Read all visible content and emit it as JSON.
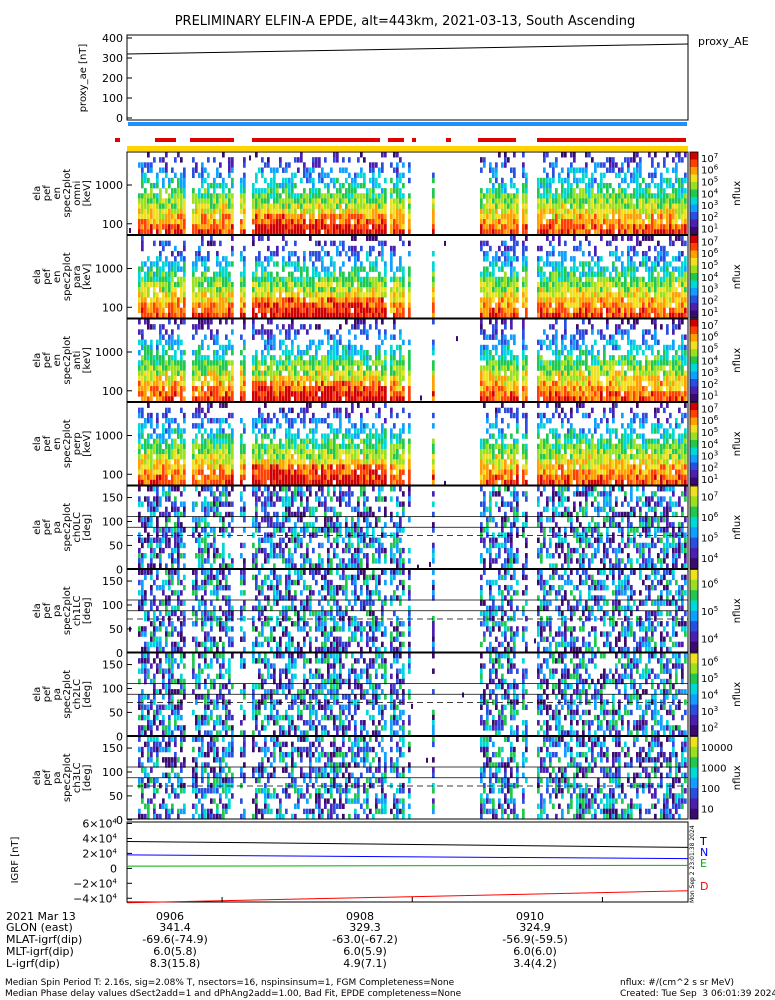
{
  "title": "PRELIMINARY ELFIN-A EPDE, alt=443km, 2021-03-13, South Ascending",
  "proxy_ae": {
    "ylabel": "proxy_ae [nT]",
    "legend": "proxy_AE",
    "yticks": [
      "400",
      "300",
      "200",
      "100",
      "0"
    ]
  },
  "panels": [
    {
      "ylabel": "ela pef en spec2plot omni [keV]",
      "yticks": [
        "1000",
        "100"
      ],
      "cbar_label": "nflux",
      "cbar_ticks": [
        "10^7",
        "10^6",
        "10^5",
        "10^4",
        "10^3",
        "10^2",
        "10^1"
      ]
    },
    {
      "ylabel": "ela pef en spec2plot para [keV]",
      "yticks": [
        "1000",
        "100"
      ],
      "cbar_label": "nflux",
      "cbar_ticks": [
        "10^7",
        "10^6",
        "10^5",
        "10^4",
        "10^3",
        "10^2",
        "10^1"
      ]
    },
    {
      "ylabel": "ela pef en spec2plot anti [keV]",
      "yticks": [
        "1000",
        "100"
      ],
      "cbar_label": "nflux",
      "cbar_ticks": [
        "10^7",
        "10^6",
        "10^5",
        "10^4",
        "10^3",
        "10^2",
        "10^1"
      ]
    },
    {
      "ylabel": "ela pef en spec2plot perp [keV]",
      "yticks": [
        "1000",
        "100"
      ],
      "cbar_label": "nflux",
      "cbar_ticks": [
        "10^7",
        "10^6",
        "10^5",
        "10^4",
        "10^3",
        "10^2",
        "10^1"
      ]
    },
    {
      "ylabel": "ela pef pa spec2plot ch0LC [deg]",
      "yticks": [
        "150",
        "100",
        "50",
        "0"
      ],
      "cbar_label": "nflux",
      "cbar_ticks": [
        "10^7",
        "10^6",
        "10^5",
        "10^4"
      ]
    },
    {
      "ylabel": "ela pef pa spec2plot ch1LC [deg]",
      "yticks": [
        "150",
        "100",
        "50",
        "0"
      ],
      "cbar_label": "nflux",
      "cbar_ticks": [
        "10^6",
        "10^5",
        "10^4"
      ]
    },
    {
      "ylabel": "ela pef pa spec2plot ch2LC [deg]",
      "yticks": [
        "150",
        "100",
        "50",
        "0"
      ],
      "cbar_label": "nflux",
      "cbar_ticks": [
        "10^6",
        "10^5",
        "10^4",
        "10^3",
        "10^2"
      ]
    },
    {
      "ylabel": "ela pef pa spec2plot ch3LC [deg]",
      "yticks": [
        "150",
        "100",
        "50",
        "0"
      ],
      "cbar_label": "nflux",
      "cbar_ticks": [
        "10000",
        "1000",
        "100",
        "10"
      ]
    }
  ],
  "igrf": {
    "ylabel": "IGRF [nT]",
    "yticks": [
      "6×10^4",
      "4×10^4",
      "2×10^4",
      "0",
      "−2×10^4",
      "−4×10^4"
    ],
    "legend": [
      {
        "name": "T",
        "color": "#000000"
      },
      {
        "name": "N",
        "color": "#0000ff"
      },
      {
        "name": "E",
        "color": "#00b000"
      },
      {
        "name": "D",
        "color": "#ff0000"
      }
    ],
    "side_stamp": "Mon Sep  2 23:01:38 2024"
  },
  "xaxis": {
    "ticks": [
      "0906",
      "0908",
      "0910"
    ],
    "rows": [
      {
        "label": "2021 Mar 13",
        "values": [
          "0906",
          "0908",
          "0910"
        ]
      },
      {
        "label": "GLON (east)",
        "values": [
          "341.4",
          "329.3",
          "324.9"
        ]
      },
      {
        "label": "MLAT-igrf(dip)",
        "values": [
          "-69.6(-74.9)",
          "-63.0(-67.2)",
          "-56.9(-59.5)"
        ]
      },
      {
        "label": "MLT-igrf(dip)",
        "values": [
          "6.0(5.8)",
          "6.0(5.9)",
          "6.0(6.0)"
        ]
      },
      {
        "label": "L-igrf(dip)",
        "values": [
          "8.3(15.8)",
          "4.9(7.1)",
          "3.4(4.2)"
        ]
      }
    ]
  },
  "footer": {
    "line1": "Median Spin Period T: 2.16s, sig=2.08% T, nsectors=16, nspinsinsum=1, FGM Completeness=None",
    "line2": "Median Phase delay values dSect2add=1 and dPhAng2add=1.00, Bad Fit, EPDE completeness=None",
    "units": "nflux: #/(cm^2 s sr MeV)",
    "created": "Created: Tue Sep  3 06:01:39 2024"
  },
  "colors": {
    "orbit_bar": "#1e90ff",
    "fast_bar": "#e00000",
    "quality_bar": "#ffd400"
  },
  "chart_data": {
    "type": "heatmap",
    "title": "PRELIMINARY ELFIN-A EPDE, alt=443km, 2021-03-13, South Ascending",
    "x_ticks": [
      "0906",
      "0908",
      "0910"
    ],
    "proxy_ae_series": {
      "name": "proxy_AE",
      "x_minutes_since_0905": [
        0,
        5.9
      ],
      "values": [
        315,
        360
      ],
      "ylim": [
        0,
        400
      ]
    },
    "igrf_series": [
      {
        "name": "T",
        "start": 36000,
        "end": 28000
      },
      {
        "name": "N",
        "start": 18000,
        "end": 13000
      },
      {
        "name": "E",
        "start": 3000,
        "end": 4000
      },
      {
        "name": "D",
        "start": -46000,
        "end": -30000
      }
    ],
    "igrf_ylim": [
      -45000,
      62000
    ],
    "energy_range_keV": [
      50,
      7000
    ],
    "pitch_angle_range_deg": [
      0,
      180
    ],
    "colorbar_label": "nflux"
  }
}
